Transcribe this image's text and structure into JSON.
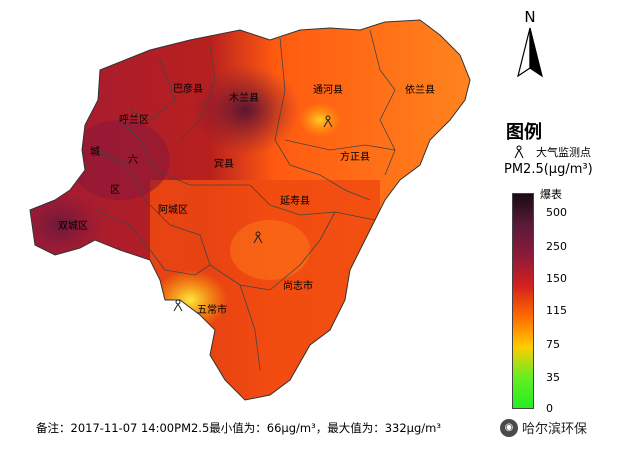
{
  "north_arrow": {
    "letter": "N",
    "icon": "north-arrow-icon"
  },
  "legend": {
    "title": "图例",
    "station_label": "大气监测点",
    "unit": "PM2.5(μg/m³)",
    "top_label": "爆表",
    "ticks": [
      "500",
      "250",
      "150",
      "115",
      "75",
      "35",
      "0"
    ],
    "colors": [
      "#1a0a12",
      "#5a1a3a",
      "#8b1a3a",
      "#d4201f",
      "#ff6a00",
      "#ffcc00",
      "#66ee22",
      "#22ee22"
    ]
  },
  "regions": [
    {
      "name": "巴彦县",
      "level": "high"
    },
    {
      "name": "木兰县",
      "level": "very-high"
    },
    {
      "name": "通河县",
      "level": "medium"
    },
    {
      "name": "依兰县",
      "level": "low-medium"
    },
    {
      "name": "呼兰区",
      "level": "high"
    },
    {
      "name": "宾县",
      "level": "high"
    },
    {
      "name": "方正县",
      "level": "medium"
    },
    {
      "name": "延寿县",
      "level": "medium"
    },
    {
      "name": "阿城区",
      "level": "high"
    },
    {
      "name": "双城区",
      "level": "very-high"
    },
    {
      "name": "尚志市",
      "level": "medium"
    },
    {
      "name": "五常市",
      "level": "low"
    },
    {
      "name": "城",
      "level": "high"
    },
    {
      "name": "六",
      "level": "high"
    },
    {
      "name": "区",
      "level": "high"
    }
  ],
  "note": "备注：2017-11-07 14:00PM2.5最小值为：66μg/m³，最大值为：332μg/m³",
  "brand": "哈尔滨环保"
}
